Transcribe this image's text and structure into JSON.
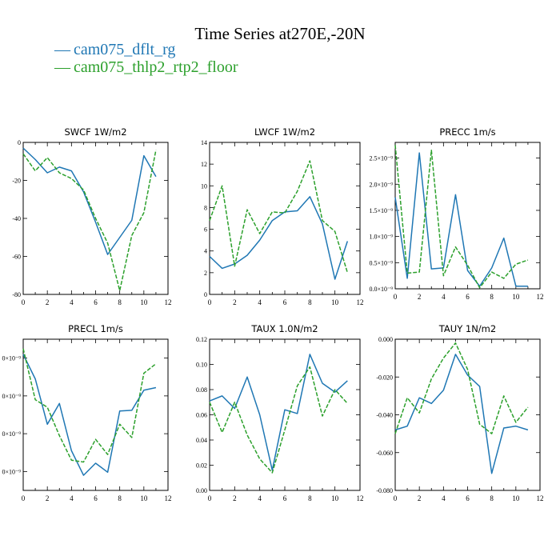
{
  "title": "Time Series at270E,-20N",
  "legend": [
    {
      "marker": "—",
      "label": "cam075_dflt_rg",
      "color": "#1f77b4"
    },
    {
      "marker": "—",
      "label": "cam075_thlp2_rtp2_floor",
      "color": "#2ca02c"
    }
  ],
  "chart_data": [
    {
      "type": "line",
      "title": "SWCF   1W/m2",
      "xlim": [
        0,
        12
      ],
      "ylim": [
        -80,
        0
      ],
      "xticks": [
        0,
        2,
        4,
        6,
        8,
        10,
        12
      ],
      "yticks": [
        -80,
        -60,
        -40,
        -20,
        0
      ],
      "ytick_labels": [
        "-80",
        "-60",
        "-40",
        "-20",
        "0"
      ],
      "x": [
        0,
        1,
        2,
        3,
        4,
        5,
        6,
        7,
        8,
        9,
        10,
        11
      ],
      "series": [
        {
          "name": "cam075_dflt_rg",
          "color": "#1f77b4",
          "dash": "",
          "values": [
            -3,
            -9,
            -16,
            -13,
            -15,
            -26,
            -42,
            -59,
            -50,
            -41,
            -7,
            -18
          ]
        },
        {
          "name": "cam075_thlp2_rtp2_floor",
          "color": "#2ca02c",
          "dash": "5,2",
          "values": [
            -6,
            -15,
            -8,
            -16,
            -19,
            -25,
            -40,
            -53,
            -78,
            -49,
            -37,
            -4
          ]
        }
      ]
    },
    {
      "type": "line",
      "title": "LWCF   1W/m2",
      "xlim": [
        0,
        12
      ],
      "ylim": [
        0,
        14
      ],
      "xticks": [
        0,
        2,
        4,
        6,
        8,
        10,
        12
      ],
      "yticks": [
        0,
        2,
        4,
        6,
        8,
        10,
        12,
        14
      ],
      "ytick_labels": [
        "0",
        "2",
        "4",
        "6",
        "8",
        "10",
        "12",
        "14"
      ],
      "x": [
        0,
        1,
        2,
        3,
        4,
        5,
        6,
        7,
        8,
        9,
        10,
        11
      ],
      "series": [
        {
          "name": "cam075_dflt_rg",
          "color": "#1f77b4",
          "dash": "",
          "values": [
            3.5,
            2.4,
            2.8,
            3.6,
            5.0,
            6.8,
            7.6,
            7.7,
            9.0,
            6.5,
            1.4,
            4.9
          ]
        },
        {
          "name": "cam075_thlp2_rtp2_floor",
          "color": "#2ca02c",
          "dash": "5,2",
          "values": [
            6.8,
            10.0,
            2.6,
            7.8,
            5.6,
            7.6,
            7.5,
            9.5,
            12.3,
            6.8,
            5.8,
            2.0
          ]
        }
      ]
    },
    {
      "type": "line",
      "title": "PRECC   1m/s",
      "xlim": [
        0,
        12
      ],
      "ylim": [
        0,
        2.8
      ],
      "xticks": [
        0,
        2,
        4,
        6,
        8,
        10,
        12
      ],
      "yticks": [
        0,
        0.5,
        1.0,
        1.5,
        2.0,
        2.5
      ],
      "ytick_labels": [
        "0.0×10⁻⁹",
        "0.5×10⁻⁹",
        "1.0×10⁻⁹",
        "1.5×10⁻⁹",
        "2.0×10⁻⁹",
        "2.5×10⁻⁹"
      ],
      "x": [
        0,
        1,
        2,
        3,
        4,
        5,
        6,
        7,
        8,
        9,
        10,
        11
      ],
      "series": [
        {
          "name": "cam075_dflt_rg",
          "color": "#1f77b4",
          "dash": "",
          "values": [
            1.75,
            0.2,
            2.6,
            0.38,
            0.4,
            1.8,
            0.35,
            0.05,
            0.4,
            0.97,
            0.05,
            0.05
          ]
        },
        {
          "name": "cam075_thlp2_rtp2_floor",
          "color": "#2ca02c",
          "dash": "5,2",
          "values": [
            2.75,
            0.3,
            0.32,
            2.65,
            0.25,
            0.8,
            0.45,
            0.02,
            0.32,
            0.2,
            0.47,
            0.55
          ]
        }
      ]
    },
    {
      "type": "line",
      "title": "PRECL   1m/s",
      "xlim": [
        0,
        12
      ],
      "ylim": [
        0,
        4.0
      ],
      "xticks": [
        0,
        2,
        4,
        6,
        8,
        10,
        12
      ],
      "yticks": [
        0.5,
        1.5,
        2.5,
        3.5
      ],
      "ytick_labels": [
        "0×10⁻⁹",
        "0×10⁻⁹",
        "0×10⁻⁹",
        "0×10⁻⁹"
      ],
      "x": [
        0,
        1,
        2,
        3,
        4,
        5,
        6,
        7,
        8,
        9,
        10,
        11
      ],
      "series": [
        {
          "name": "cam075_dflt_rg",
          "color": "#1f77b4",
          "dash": "",
          "values": [
            3.6,
            2.95,
            1.75,
            2.3,
            1.05,
            0.4,
            0.72,
            0.48,
            2.1,
            2.12,
            2.65,
            2.72
          ]
        },
        {
          "name": "cam075_thlp2_rtp2_floor",
          "color": "#2ca02c",
          "dash": "5,2",
          "values": [
            3.75,
            2.4,
            2.2,
            1.45,
            0.8,
            0.75,
            1.35,
            0.95,
            1.75,
            1.4,
            3.1,
            3.35
          ]
        }
      ]
    },
    {
      "type": "line",
      "title": "TAUX   1.0N/m2",
      "xlim": [
        0,
        12
      ],
      "ylim": [
        0,
        0.12
      ],
      "xticks": [
        0,
        2,
        4,
        6,
        8,
        10,
        12
      ],
      "yticks": [
        0,
        0.02,
        0.04,
        0.06,
        0.08,
        0.1,
        0.12
      ],
      "ytick_labels": [
        "0.00",
        "0.02",
        "0.04",
        "0.06",
        "0.08",
        "0.10",
        "0.12"
      ],
      "x": [
        0,
        1,
        2,
        3,
        4,
        5,
        6,
        7,
        8,
        9,
        10,
        11
      ],
      "series": [
        {
          "name": "cam075_dflt_rg",
          "color": "#1f77b4",
          "dash": "",
          "values": [
            0.071,
            0.075,
            0.065,
            0.09,
            0.06,
            0.016,
            0.064,
            0.061,
            0.108,
            0.085,
            0.078,
            0.087
          ]
        },
        {
          "name": "cam075_thlp2_rtp2_floor",
          "color": "#2ca02c",
          "dash": "5,2",
          "values": [
            0.07,
            0.046,
            0.07,
            0.044,
            0.025,
            0.014,
            0.048,
            0.083,
            0.098,
            0.059,
            0.08,
            0.069
          ]
        }
      ]
    },
    {
      "type": "line",
      "title": "TAUY   1N/m2",
      "xlim": [
        0,
        12
      ],
      "ylim": [
        -0.08,
        0
      ],
      "xticks": [
        0,
        2,
        4,
        6,
        8,
        10,
        12
      ],
      "yticks": [
        -0.08,
        -0.06,
        -0.04,
        -0.02,
        0
      ],
      "ytick_labels": [
        "-0.080",
        "-0.060",
        "-0.040",
        "-0.020",
        "0.000"
      ],
      "x": [
        0,
        1,
        2,
        3,
        4,
        5,
        6,
        7,
        8,
        9,
        10,
        11
      ],
      "series": [
        {
          "name": "cam075_dflt_rg",
          "color": "#1f77b4",
          "dash": "",
          "values": [
            -0.048,
            -0.046,
            -0.031,
            -0.034,
            -0.027,
            -0.008,
            -0.019,
            -0.025,
            -0.071,
            -0.047,
            -0.046,
            -0.048
          ]
        },
        {
          "name": "cam075_thlp2_rtp2_floor",
          "color": "#2ca02c",
          "dash": "5,2",
          "values": [
            -0.05,
            -0.031,
            -0.039,
            -0.021,
            -0.01,
            -0.002,
            -0.016,
            -0.045,
            -0.05,
            -0.03,
            -0.044,
            -0.036
          ]
        }
      ]
    }
  ]
}
